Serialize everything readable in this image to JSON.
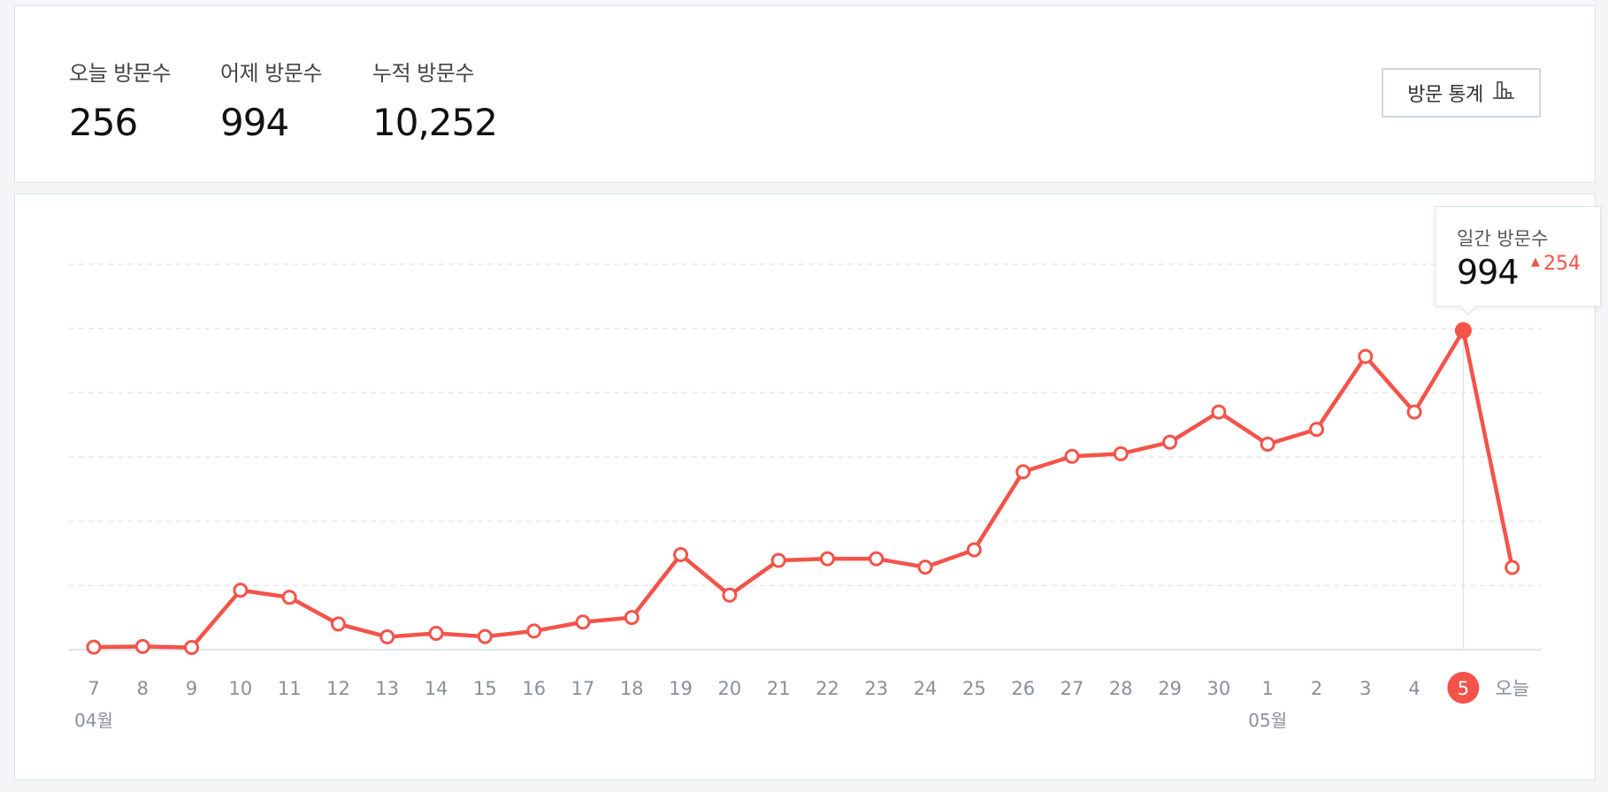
{
  "stats": {
    "today": {
      "label": "오늘 방문수",
      "value": "256"
    },
    "yesterday": {
      "label": "어제 방문수",
      "value": "994"
    },
    "total": {
      "label": "누적 방문수",
      "value": "10,252"
    },
    "button_label": "방문 통계",
    "button_icon": "bar-chart-icon"
  },
  "tooltip": {
    "label": "일간 방문수",
    "value": "994",
    "delta": "254",
    "delta_icon": "triangle-up-icon"
  },
  "colors": {
    "accent": "#f4534a",
    "grid": "#e4e7ec",
    "axis_text": "#8a8f98"
  },
  "chart_data": {
    "type": "line",
    "title": "",
    "xlabel": "",
    "ylabel": "",
    "ylim": [
      0,
      1200
    ],
    "grid": true,
    "y_tick_labels_shown": false,
    "month_labels": [
      {
        "index": 0,
        "label": "04월"
      },
      {
        "index": 24,
        "label": "05월"
      }
    ],
    "categories": [
      "7",
      "8",
      "9",
      "10",
      "11",
      "12",
      "13",
      "14",
      "15",
      "16",
      "17",
      "18",
      "19",
      "20",
      "21",
      "22",
      "23",
      "24",
      "25",
      "26",
      "27",
      "28",
      "29",
      "30",
      "1",
      "2",
      "3",
      "4",
      "5",
      "오늘"
    ],
    "highlighted_category": "5",
    "series": [
      {
        "values": [
          8,
          10,
          7,
          185,
          163,
          80,
          40,
          51,
          41,
          58,
          86,
          100,
          296,
          170,
          278,
          283,
          283,
          257,
          311,
          554,
          602,
          610,
          646,
          740,
          640,
          686,
          913,
          740,
          994,
          256
        ]
      }
    ]
  }
}
